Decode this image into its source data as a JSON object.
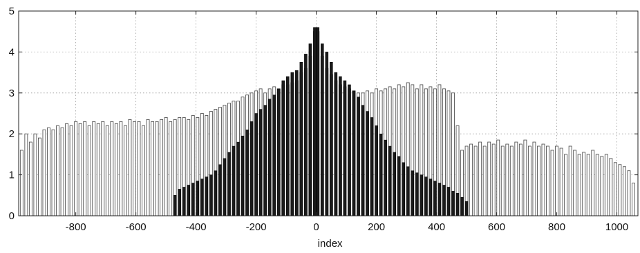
{
  "chart_data": {
    "type": "bar",
    "xlabel": "index",
    "ylabel": "",
    "xlim": [
      -990,
      1070
    ],
    "ylim": [
      0,
      5
    ],
    "xticks": [
      -800,
      -600,
      -400,
      -200,
      0,
      200,
      400,
      600,
      800,
      1000
    ],
    "xtick_labels": [
      "-800",
      "-600",
      "-400",
      "-200",
      "0",
      "200",
      "400",
      "600",
      "800",
      "1000"
    ],
    "yticks": [
      0,
      1,
      2,
      3,
      4,
      5
    ],
    "ytick_labels": [
      "0",
      "1",
      "2",
      "3",
      "4",
      "5"
    ],
    "grid": true,
    "grid_style": "dotted",
    "series": [
      {
        "style": "outline",
        "color": "#555555",
        "x": [
          -980,
          -965,
          -950,
          -935,
          -920,
          -905,
          -890,
          -875,
          -860,
          -845,
          -830,
          -815,
          -800,
          -785,
          -770,
          -755,
          -740,
          -725,
          -710,
          -695,
          -680,
          -665,
          -650,
          -635,
          -620,
          -605,
          -590,
          -575,
          -560,
          -545,
          -530,
          -515,
          -500,
          -485,
          -470,
          -455,
          -440,
          -425,
          -410,
          -395,
          -380,
          -365,
          -350,
          -335,
          -320,
          -305,
          -290,
          -275,
          -260,
          -245,
          -230,
          -215,
          -200,
          -185,
          -170,
          -155,
          -140,
          -125,
          -110,
          -95,
          -80,
          -65,
          -50,
          -35,
          -20,
          -5,
          5,
          20,
          35,
          50,
          65,
          80,
          95,
          110,
          125,
          140,
          155,
          170,
          185,
          200,
          215,
          230,
          245,
          260,
          275,
          290,
          305,
          320,
          335,
          350,
          365,
          380,
          395,
          410,
          425,
          440,
          455,
          470,
          485,
          500,
          515,
          530,
          545,
          560,
          575,
          590,
          605,
          620,
          635,
          650,
          665,
          680,
          695,
          710,
          725,
          740,
          755,
          770,
          785,
          800,
          815,
          830,
          845,
          860,
          875,
          890,
          905,
          920,
          935,
          950,
          965,
          980,
          995,
          1010,
          1025,
          1040,
          1055
        ],
        "values": [
          1.6,
          2.0,
          1.8,
          2.0,
          1.9,
          2.1,
          2.15,
          2.1,
          2.2,
          2.15,
          2.25,
          2.2,
          2.3,
          2.25,
          2.3,
          2.2,
          2.3,
          2.25,
          2.3,
          2.2,
          2.3,
          2.25,
          2.3,
          2.2,
          2.35,
          2.3,
          2.3,
          2.2,
          2.35,
          2.3,
          2.3,
          2.35,
          2.4,
          2.3,
          2.35,
          2.4,
          2.4,
          2.35,
          2.45,
          2.4,
          2.5,
          2.45,
          2.55,
          2.6,
          2.65,
          2.7,
          2.75,
          2.8,
          2.8,
          2.9,
          2.95,
          3.0,
          3.05,
          3.1,
          3.0,
          3.1,
          3.15,
          3.1,
          3.2,
          3.2,
          3.25,
          3.3,
          3.5,
          3.6,
          3.9,
          4.5,
          4.5,
          3.9,
          3.6,
          3.45,
          3.3,
          3.2,
          3.15,
          3.1,
          3.05,
          3.0,
          3.0,
          3.05,
          3.0,
          3.1,
          3.05,
          3.1,
          3.15,
          3.1,
          3.2,
          3.15,
          3.25,
          3.2,
          3.1,
          3.2,
          3.1,
          3.15,
          3.1,
          3.2,
          3.1,
          3.05,
          3.0,
          2.2,
          1.6,
          1.7,
          1.75,
          1.7,
          1.8,
          1.7,
          1.8,
          1.75,
          1.85,
          1.7,
          1.75,
          1.7,
          1.8,
          1.75,
          1.85,
          1.7,
          1.8,
          1.7,
          1.75,
          1.7,
          1.6,
          1.7,
          1.65,
          1.5,
          1.7,
          1.6,
          1.5,
          1.55,
          1.5,
          1.6,
          1.5,
          1.45,
          1.5,
          1.4,
          1.3,
          1.25,
          1.2,
          1.1,
          0.8
        ]
      },
      {
        "style": "filled",
        "color": "#1a1a1a",
        "x": [
          -470,
          -455,
          -440,
          -425,
          -410,
          -395,
          -380,
          -365,
          -350,
          -335,
          -320,
          -305,
          -290,
          -275,
          -260,
          -245,
          -230,
          -215,
          -200,
          -185,
          -170,
          -155,
          -140,
          -125,
          -110,
          -95,
          -80,
          -65,
          -50,
          -35,
          -20,
          -5,
          5,
          20,
          35,
          50,
          65,
          80,
          95,
          110,
          125,
          140,
          155,
          170,
          185,
          200,
          215,
          230,
          245,
          260,
          275,
          290,
          305,
          320,
          335,
          350,
          365,
          380,
          395,
          410,
          425,
          440,
          455,
          470,
          485,
          500
        ],
        "values": [
          0.5,
          0.65,
          0.7,
          0.75,
          0.8,
          0.85,
          0.9,
          0.95,
          1.0,
          1.1,
          1.25,
          1.4,
          1.55,
          1.7,
          1.8,
          1.95,
          2.1,
          2.3,
          2.5,
          2.6,
          2.7,
          2.85,
          2.95,
          3.1,
          3.3,
          3.4,
          3.5,
          3.55,
          3.75,
          3.95,
          4.2,
          4.6,
          4.6,
          4.2,
          4.0,
          3.75,
          3.5,
          3.4,
          3.3,
          3.2,
          3.05,
          2.9,
          2.7,
          2.55,
          2.4,
          2.2,
          2.0,
          1.85,
          1.7,
          1.55,
          1.45,
          1.3,
          1.2,
          1.1,
          1.05,
          1.0,
          0.95,
          0.9,
          0.85,
          0.8,
          0.75,
          0.7,
          0.6,
          0.55,
          0.45,
          0.35
        ]
      }
    ]
  }
}
